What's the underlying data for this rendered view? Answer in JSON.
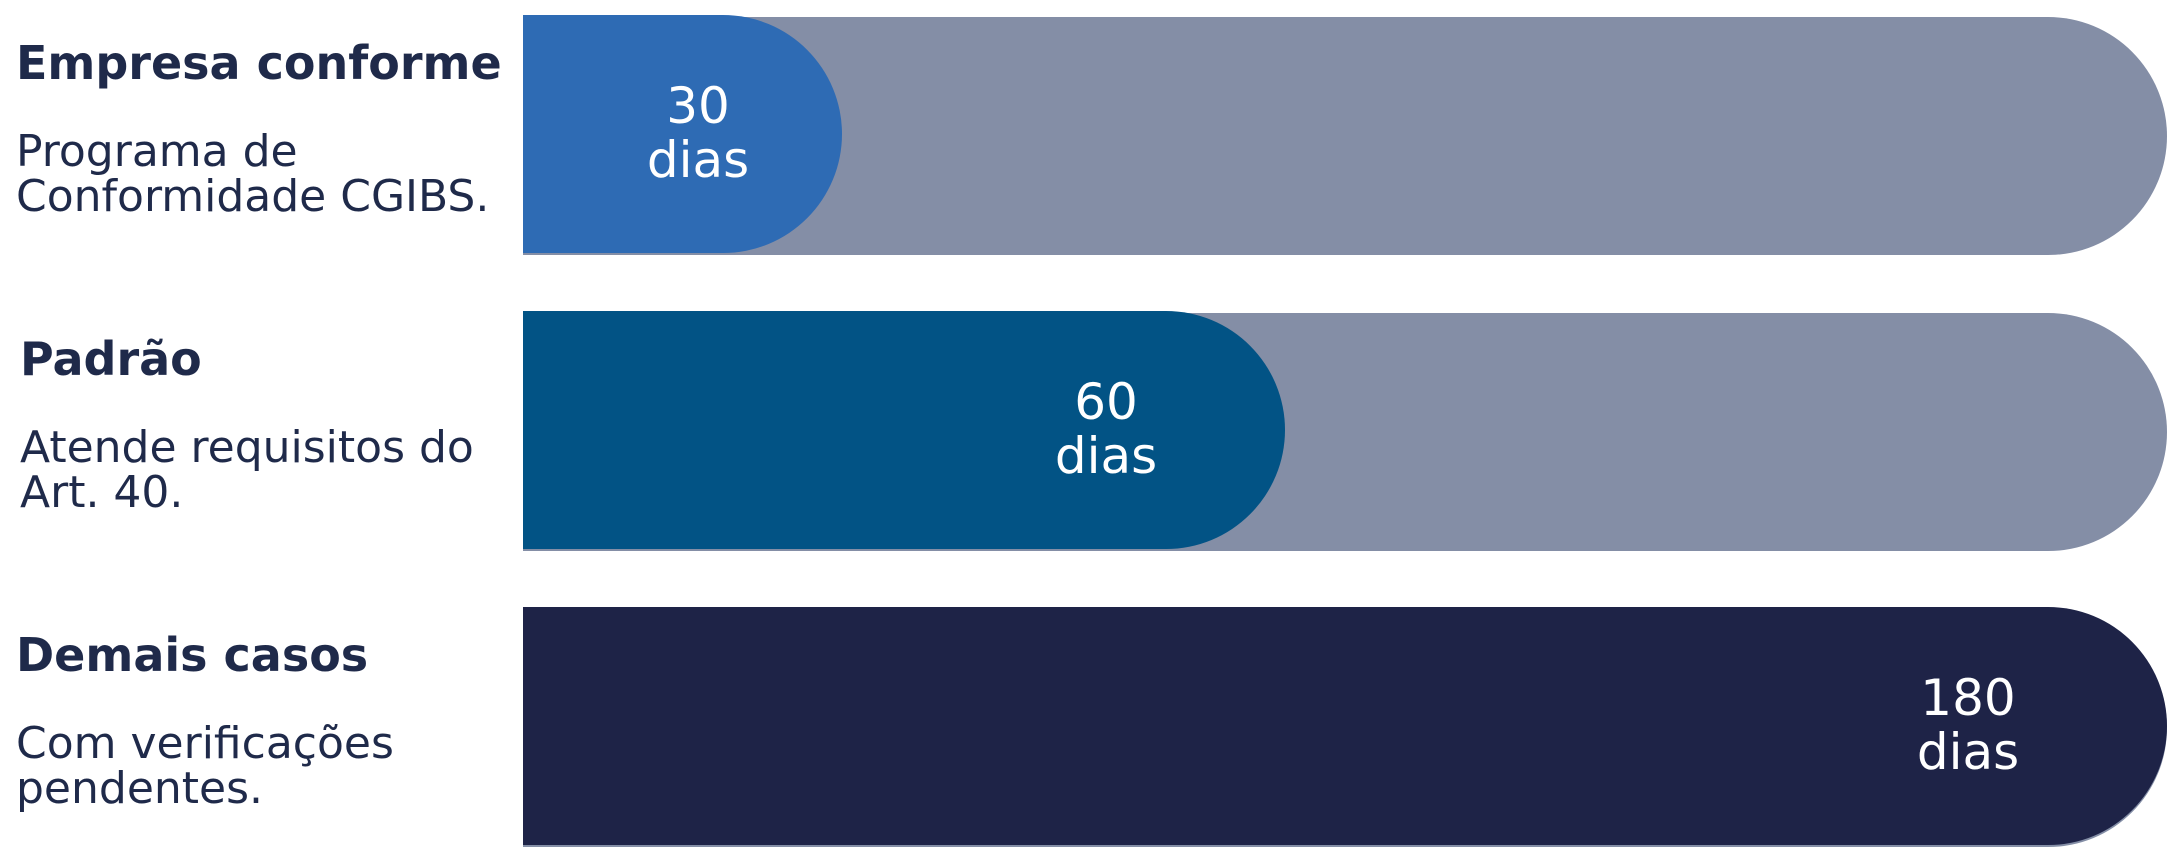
{
  "chart_data": {
    "type": "bar",
    "orientation": "horizontal",
    "xlim": [
      0,
      180
    ],
    "grid": false,
    "categories": [
      {
        "title": "Empresa conforme",
        "description": "Programa de Conformidade CGIBS.",
        "value": 30,
        "value_label": "30",
        "unit_label": "dias",
        "color": "#2e6bb4"
      },
      {
        "title": "Padrão",
        "description": "Atende requisitos do Art. 40.",
        "value": 60,
        "value_label": "60",
        "unit_label": "dias",
        "color": "#025385"
      },
      {
        "title": "Demais casos",
        "description": "Com verificações pendentes.",
        "value": 180,
        "value_label": "180",
        "unit_label": "dias",
        "color": "#1e2347"
      }
    ],
    "track_color": "#848ea6"
  }
}
